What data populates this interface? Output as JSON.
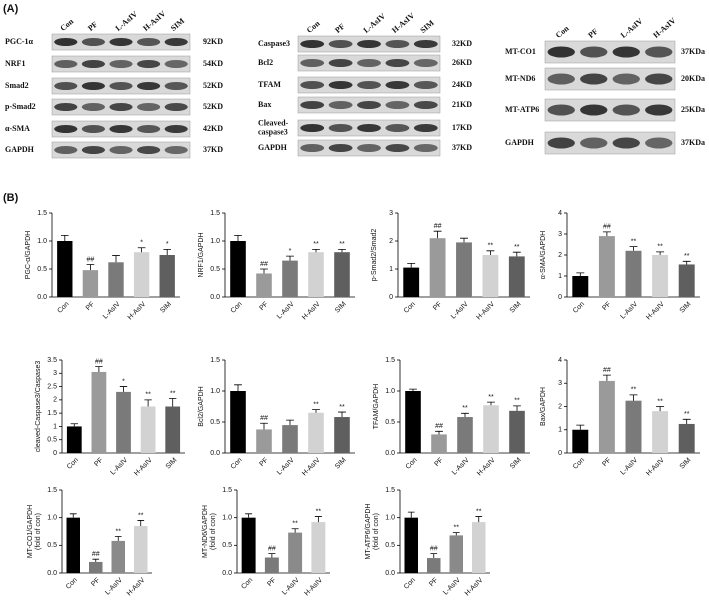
{
  "panel_labels": [
    "(A)",
    "(B)"
  ],
  "blots": [
    {
      "lanes": [
        "Con",
        "PF",
        "L-AsIV",
        "H-AsIV",
        "SIM"
      ],
      "rows": [
        {
          "label": [
            "PGC-1α"
          ],
          "size": "92KD"
        },
        {
          "label": [
            "NRF1"
          ],
          "size": "54KD"
        },
        {
          "label": [
            "Smad2"
          ],
          "size": "52KD"
        },
        {
          "label": [
            "p-Smad2"
          ],
          "size": "52KD"
        },
        {
          "label": [
            "α-SMA"
          ],
          "size": "42KD"
        },
        {
          "label": [
            "GAPDH"
          ],
          "size": "37KD"
        }
      ]
    },
    {
      "lanes": [
        "Con",
        "PF",
        "L-AsIV",
        "H-AsIV",
        "SIM"
      ],
      "rows": [
        {
          "label": [
            "Caspase3"
          ],
          "size": "32KD"
        },
        {
          "label": [
            "Bcl2"
          ],
          "size": "26KD"
        },
        {
          "label": [
            "TFAM"
          ],
          "size": "24KD"
        },
        {
          "label": [
            "Bax"
          ],
          "size": "21KD"
        },
        {
          "label": [
            "Cleaved-",
            "caspase3"
          ],
          "size": "17KD"
        },
        {
          "label": [
            "GAPDH"
          ],
          "size": "37KD"
        }
      ]
    },
    {
      "lanes": [
        "Con",
        "PF",
        "L-AsIV",
        "H-AsIV"
      ],
      "rows": [
        {
          "label": [
            "MT-CO1"
          ],
          "size": "37KDa"
        },
        {
          "label": [
            "MT-ND6"
          ],
          "size": "20KDa"
        },
        {
          "label": [
            "MT-ATP6"
          ],
          "size": "25KDa"
        },
        {
          "label": [
            "GAPDH"
          ],
          "size": "37KDa"
        }
      ]
    }
  ],
  "chart_data": [
    {
      "type": "bar",
      "ylabel": [
        "PGC-α/GAPDH"
      ],
      "categories": [
        "Con",
        "PF",
        "L-AsIV",
        "H-AsIV",
        "SIM"
      ],
      "values": [
        1.0,
        0.48,
        0.62,
        0.8,
        0.75
      ],
      "errors": [
        0.1,
        0.1,
        0.12,
        0.08,
        0.1
      ],
      "annotations": [
        null,
        "##",
        null,
        "*",
        "*"
      ],
      "colors": [
        "#000000",
        "#9a9a9a",
        "#7a7a7a",
        "#d2d2d2",
        "#5f5f5f"
      ],
      "ylim": [
        0,
        1.5
      ],
      "yticks": [
        {
          "value": 0,
          "label": "0.0"
        },
        0.5,
        {
          "value": 1,
          "label": "1.0"
        },
        1.5
      ]
    },
    {
      "type": "bar",
      "ylabel": [
        "NRF1/GAPDH"
      ],
      "categories": [
        "Con",
        "PF",
        "L-AsIV",
        "H-AsIV",
        "SIM"
      ],
      "values": [
        1.0,
        0.42,
        0.65,
        0.8,
        0.8
      ],
      "errors": [
        0.1,
        0.08,
        0.08,
        0.05,
        0.05
      ],
      "annotations": [
        null,
        "##",
        "*",
        "**",
        "**"
      ],
      "colors": [
        "#000000",
        "#9a9a9a",
        "#7a7a7a",
        "#d2d2d2",
        "#5f5f5f"
      ],
      "ylim": [
        0,
        1.5
      ],
      "yticks": [
        {
          "value": 0,
          "label": "0.0"
        },
        0.5,
        {
          "value": 1,
          "label": "1.0"
        },
        1.5
      ]
    },
    {
      "type": "bar",
      "ylabel": [
        "p-Smad2/Smad2"
      ],
      "categories": [
        "Con",
        "PF",
        "L-AsIV",
        "H-AsIV",
        "SIM"
      ],
      "values": [
        1.05,
        2.1,
        1.95,
        1.5,
        1.45
      ],
      "errors": [
        0.15,
        0.25,
        0.15,
        0.15,
        0.15
      ],
      "annotations": [
        null,
        "##",
        null,
        "**",
        "**"
      ],
      "colors": [
        "#000000",
        "#9a9a9a",
        "#7a7a7a",
        "#d2d2d2",
        "#5f5f5f"
      ],
      "ylim": [
        0,
        3
      ],
      "yticks": [
        0,
        1,
        2,
        3
      ]
    },
    {
      "type": "bar",
      "ylabel": [
        "α-SMA/GAPDH"
      ],
      "categories": [
        "Con",
        "PF",
        "L-AsIV",
        "H-AsIV",
        "SIM"
      ],
      "values": [
        1.0,
        2.9,
        2.2,
        2.0,
        1.55
      ],
      "errors": [
        0.15,
        0.2,
        0.2,
        0.15,
        0.15
      ],
      "annotations": [
        null,
        "##",
        "**",
        "**",
        "**"
      ],
      "colors": [
        "#000000",
        "#9a9a9a",
        "#7a7a7a",
        "#d2d2d2",
        "#5f5f5f"
      ],
      "ylim": [
        0,
        4
      ],
      "yticks": [
        0,
        1,
        2,
        3,
        4
      ]
    },
    {
      "type": "bar",
      "ylabel": [
        "cleaved-Caspase3/Caspase3"
      ],
      "categories": [
        "Con",
        "PF",
        "L-AsIV",
        "H-AsIV",
        "SIM"
      ],
      "values": [
        1.0,
        3.05,
        2.3,
        1.75,
        1.75
      ],
      "errors": [
        0.1,
        0.2,
        0.2,
        0.25,
        0.3
      ],
      "annotations": [
        null,
        "##",
        "*",
        "**",
        "**"
      ],
      "colors": [
        "#000000",
        "#9a9a9a",
        "#7a7a7a",
        "#d2d2d2",
        "#5f5f5f"
      ],
      "ylim": [
        0,
        3.5
      ],
      "yticks": [
        0,
        0.5,
        1,
        1.5,
        2,
        2.5,
        3,
        3.5
      ]
    },
    {
      "type": "bar",
      "ylabel": [
        "Bcl2/GAPDH"
      ],
      "categories": [
        "Con",
        "PF",
        "L-AsIV",
        "H-AsIV",
        "SIM"
      ],
      "values": [
        1.0,
        0.38,
        0.45,
        0.65,
        0.58
      ],
      "errors": [
        0.1,
        0.1,
        0.08,
        0.05,
        0.08
      ],
      "annotations": [
        null,
        "##",
        null,
        "**",
        "**"
      ],
      "colors": [
        "#000000",
        "#9a9a9a",
        "#7a7a7a",
        "#d2d2d2",
        "#5f5f5f"
      ],
      "ylim": [
        0,
        1.5
      ],
      "yticks": [
        {
          "value": 0,
          "label": "0.0"
        },
        0.5,
        {
          "value": 1,
          "label": "1.0"
        },
        1.5
      ]
    },
    {
      "type": "bar",
      "ylabel": [
        "TFAM/GAPDH"
      ],
      "categories": [
        "Con",
        "PF",
        "L-AsIV",
        "H-AsIV",
        "SIM"
      ],
      "values": [
        1.0,
        0.3,
        0.58,
        0.77,
        0.68
      ],
      "errors": [
        0.03,
        0.05,
        0.06,
        0.05,
        0.08
      ],
      "annotations": [
        null,
        "##",
        "**",
        "**",
        "**"
      ],
      "colors": [
        "#000000",
        "#9a9a9a",
        "#7a7a7a",
        "#d2d2d2",
        "#5f5f5f"
      ],
      "ylim": [
        0,
        1.5
      ],
      "yticks": [
        {
          "value": 0,
          "label": "0.0"
        },
        0.5,
        {
          "value": 1,
          "label": "1.0"
        },
        1.5
      ]
    },
    {
      "type": "bar",
      "ylabel": [
        "Bax/GAPDH"
      ],
      "categories": [
        "Con",
        "PF",
        "L-AsIV",
        "H-AsIV",
        "SIM"
      ],
      "values": [
        1.0,
        3.1,
        2.25,
        1.8,
        1.25
      ],
      "errors": [
        0.2,
        0.25,
        0.25,
        0.2,
        0.2
      ],
      "annotations": [
        null,
        "##",
        "**",
        "**",
        "**"
      ],
      "colors": [
        "#000000",
        "#9a9a9a",
        "#7a7a7a",
        "#d2d2d2",
        "#5f5f5f"
      ],
      "ylim": [
        0,
        4
      ],
      "yticks": [
        0,
        1,
        2,
        3,
        4
      ]
    },
    {
      "type": "bar",
      "ylabel": [
        "MT-CO1/GAPDH",
        "(fold of con)"
      ],
      "categories": [
        "Con",
        "PF",
        "L-AsIV",
        "H-AsIV"
      ],
      "values": [
        1.0,
        0.2,
        0.58,
        0.85
      ],
      "errors": [
        0.07,
        0.05,
        0.08,
        0.1
      ],
      "annotations": [
        null,
        "##",
        "**",
        "**"
      ],
      "colors": [
        "#000000",
        "#7a7a7a",
        "#8a8a8a",
        "#d2d2d2"
      ],
      "ylim": [
        0,
        1.5
      ],
      "yticks": [
        {
          "value": 0,
          "label": "0.0"
        },
        0.5,
        {
          "value": 1,
          "label": "1.0"
        },
        1.5
      ]
    },
    {
      "type": "bar",
      "ylabel": [
        "MT-ND6/GAPDH",
        "(fold of con)"
      ],
      "categories": [
        "Con",
        "PF",
        "L-AsIV",
        "H-AsIV"
      ],
      "values": [
        1.0,
        0.28,
        0.73,
        0.92
      ],
      "errors": [
        0.07,
        0.07,
        0.07,
        0.1
      ],
      "annotations": [
        null,
        "##",
        "**",
        "**"
      ],
      "colors": [
        "#000000",
        "#7a7a7a",
        "#8a8a8a",
        "#d2d2d2"
      ],
      "ylim": [
        0,
        1.5
      ],
      "yticks": [
        {
          "value": 0,
          "label": "0.0"
        },
        0.5,
        {
          "value": 1,
          "label": "1.0"
        },
        1.5
      ]
    },
    {
      "type": "bar",
      "ylabel": [
        "MT-ATP6/GAPDH",
        "(fold of con)"
      ],
      "categories": [
        "Con",
        "PF",
        "L-AsIV",
        "H-AsIV"
      ],
      "values": [
        1.0,
        0.27,
        0.68,
        0.92
      ],
      "errors": [
        0.1,
        0.08,
        0.05,
        0.1
      ],
      "annotations": [
        null,
        "##",
        "**",
        "**"
      ],
      "colors": [
        "#000000",
        "#7a7a7a",
        "#8a8a8a",
        "#d2d2d2"
      ],
      "ylim": [
        0,
        1.5
      ],
      "yticks": [
        {
          "value": 0,
          "label": "0.0"
        },
        0.5,
        {
          "value": 1,
          "label": "1.0"
        },
        1.5
      ]
    }
  ]
}
